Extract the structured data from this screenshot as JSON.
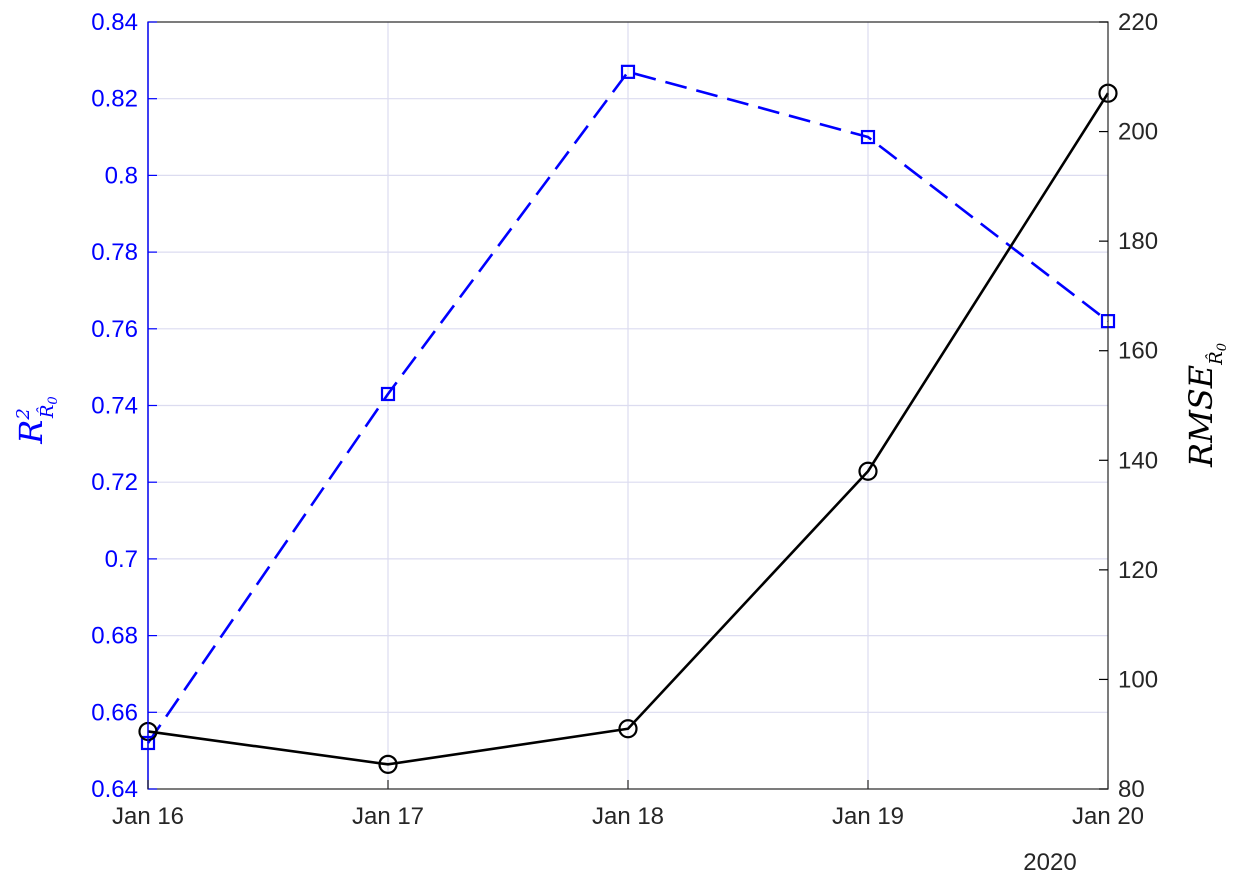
{
  "chart_data": {
    "type": "line",
    "x_categories": [
      "Jan 16",
      "Jan 17",
      "Jan 18",
      "Jan 19",
      "Jan 20"
    ],
    "x_secondary_label": "2020",
    "grid": true,
    "left_axis": {
      "label_main": "R",
      "label_sup": "2",
      "label_sub": "R̂",
      "label_sub_sub": "0",
      "ylim": [
        0.64,
        0.84
      ],
      "ticks": [
        0.64,
        0.66,
        0.68,
        0.7,
        0.72,
        0.74,
        0.76,
        0.78,
        0.8,
        0.82,
        0.84
      ],
      "tick_labels": [
        "0.64",
        "0.66",
        "0.68",
        "0.7",
        "0.72",
        "0.74",
        "0.76",
        "0.78",
        "0.8",
        "0.82",
        "0.84"
      ],
      "color": "#0000ff"
    },
    "right_axis": {
      "label_main": "RMSE",
      "label_sub": "R̂",
      "label_sub_sub": "0",
      "ylim": [
        80,
        220
      ],
      "ticks": [
        80,
        100,
        120,
        140,
        160,
        180,
        200,
        220
      ],
      "tick_labels": [
        "80",
        "100",
        "120",
        "140",
        "160",
        "180",
        "200",
        "220"
      ],
      "color": "#000000"
    },
    "series": [
      {
        "axis": "left",
        "values": [
          0.652,
          0.743,
          0.827,
          0.81,
          0.762
        ],
        "color": "#0000ff",
        "line_style": "dashed",
        "marker": "square"
      },
      {
        "axis": "right",
        "values": [
          90.5,
          84.5,
          91.0,
          138.0,
          207.0
        ],
        "color": "#000000",
        "line_style": "solid",
        "marker": "circle"
      }
    ]
  }
}
